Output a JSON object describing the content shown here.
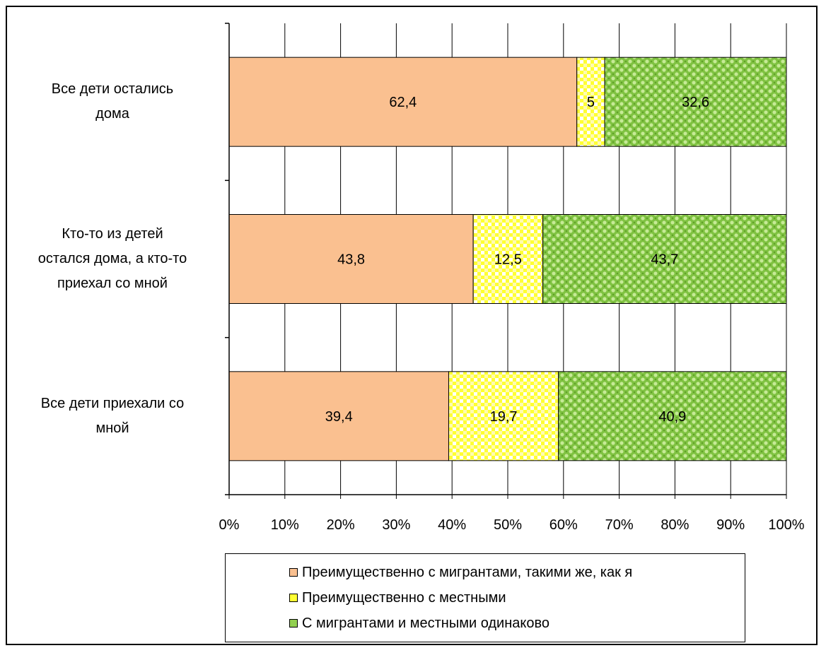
{
  "chart_data": {
    "type": "bar",
    "orientation": "horizontal",
    "stacked": "percent",
    "categories": [
      "Все дети остались дома",
      "Кто-то из детей остался дома, а кто-то приехал со мной",
      "Все дети приехали со мной"
    ],
    "series": [
      {
        "name": "Преимущественно с мигрантами, такими же, как я",
        "values": [
          62.4,
          43.8,
          39.4
        ],
        "labels": [
          "62,4",
          "43,8",
          "39,4"
        ],
        "color": "#fac090",
        "pattern": "solid"
      },
      {
        "name": "Преимущественно с местными",
        "values": [
          5,
          12.5,
          19.7
        ],
        "labels": [
          "5",
          "12,5",
          "19,7"
        ],
        "color": "#ffff33",
        "pattern": "checker"
      },
      {
        "name": "С мигрантами и местными одинаково",
        "values": [
          32.6,
          43.7,
          40.9
        ],
        "labels": [
          "32,6",
          "43,7",
          "40,9"
        ],
        "color": "#92d050",
        "pattern": "dots"
      }
    ],
    "x_ticks": [
      "0%",
      "10%",
      "20%",
      "30%",
      "40%",
      "50%",
      "60%",
      "70%",
      "80%",
      "90%",
      "100%"
    ],
    "xlim": [
      0,
      100
    ],
    "grid": true,
    "legend_position": "bottom"
  },
  "category_lines": [
    [
      "Все дети остались",
      "дома"
    ],
    [
      "Кто-то из детей",
      "остался дома, а кто-то",
      "приехал со мной"
    ],
    [
      "Все дети приехали со",
      "мной"
    ]
  ]
}
